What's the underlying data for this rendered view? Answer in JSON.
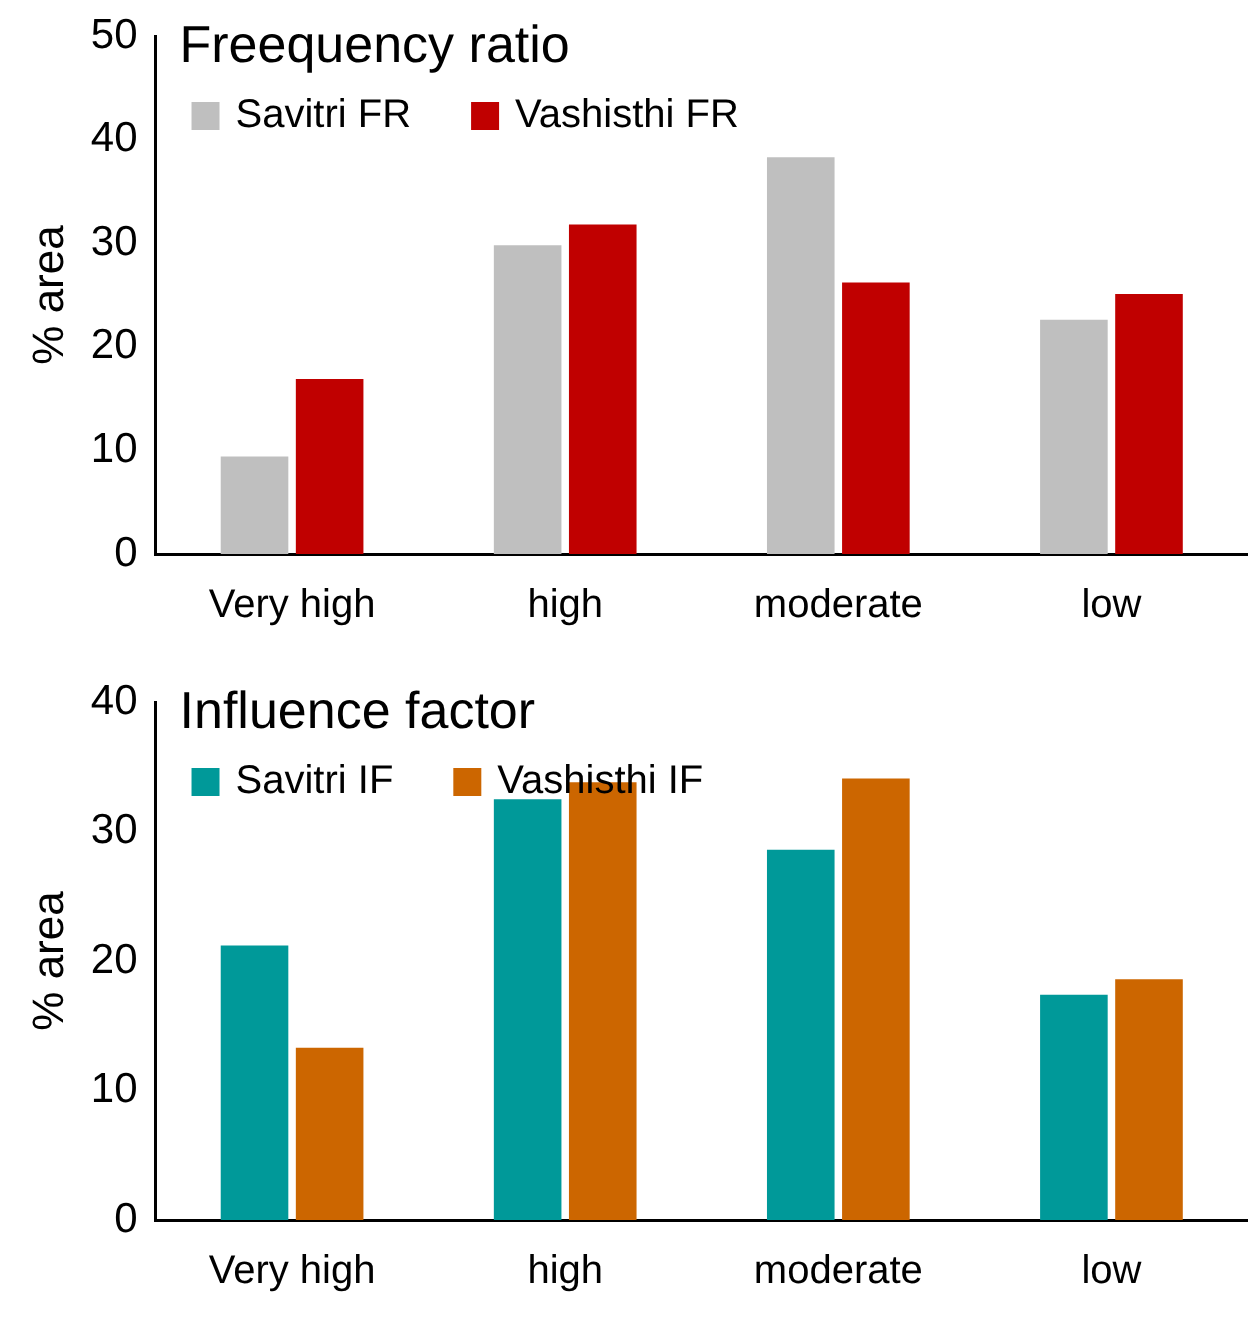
{
  "chart_data": [
    {
      "type": "bar",
      "title": "Freequency ratio",
      "ylabel": "% area",
      "categories": [
        "Very high",
        "high",
        "moderate",
        "low"
      ],
      "series": [
        {
          "name": "Savitri FR",
          "color": "#bfbfbf",
          "values": [
            9.4,
            29.8,
            38.3,
            22.6
          ]
        },
        {
          "name": "Vashisthi FR",
          "color": "#c00000",
          "values": [
            16.9,
            31.8,
            26.2,
            25.1
          ]
        }
      ],
      "ylim": [
        0,
        50
      ],
      "yticks": [
        0,
        10,
        20,
        30,
        40,
        50
      ],
      "grid": false,
      "legend": "top left"
    },
    {
      "type": "bar",
      "title": "Influence factor",
      "ylabel": "% area",
      "categories": [
        "Very high",
        "high",
        "moderate",
        "low"
      ],
      "series": [
        {
          "name": "Savitri IF",
          "color": "#009999",
          "values": [
            21.2,
            32.5,
            28.6,
            17.4
          ]
        },
        {
          "name": "Vashisthi IF",
          "color": "#cc6600",
          "values": [
            13.3,
            33.8,
            34.1,
            18.6
          ]
        }
      ],
      "ylim": [
        0,
        40
      ],
      "yticks": [
        0,
        10,
        20,
        30,
        40
      ],
      "grid": false,
      "legend": "top left"
    }
  ]
}
